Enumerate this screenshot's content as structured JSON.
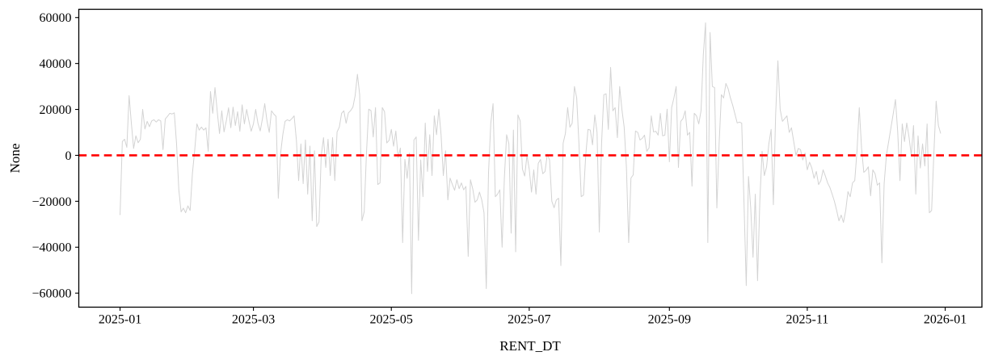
{
  "chart_data": {
    "type": "line",
    "title": "",
    "xlabel": "RENT_DT",
    "ylabel": "None",
    "grid": false,
    "legend": null,
    "frame": "full-box",
    "background_color": "#ffffff",
    "frame_color": "#000000",
    "x_axis": {
      "start_date": "2025-01-01",
      "unit": "days",
      "tick_labels": [
        "2025-01",
        "2025-03",
        "2025-05",
        "2025-07",
        "2025-09",
        "2025-11",
        "2026-01"
      ],
      "tick_offsets": [
        0,
        59,
        120,
        181,
        243,
        304,
        365
      ]
    },
    "y_axis": {
      "ticks": [
        -60000,
        -40000,
        -20000,
        0,
        20000,
        40000,
        60000
      ],
      "tick_labels": [
        "−60000",
        "−40000",
        "−20000",
        "0",
        "20000",
        "40000",
        "60000"
      ]
    },
    "xlim_days": [
      -18.25,
      381.25
    ],
    "ylim": [
      -66100,
      63600
    ],
    "baseline": {
      "y": 0,
      "color": "#ff0000",
      "style": "dashed",
      "width": 2.6
    },
    "series": [
      {
        "name": "None",
        "color": "#d3d3d3",
        "width": 1,
        "day_step": 1,
        "values": [
          -26000,
          6000,
          7000,
          3500,
          26000,
          14000,
          3000,
          8500,
          5500,
          7000,
          20000,
          11500,
          14800,
          12500,
          15000,
          15500,
          14500,
          15500,
          15000,
          2500,
          15800,
          17000,
          18300,
          18000,
          18500,
          5000,
          -15000,
          -24600,
          -23000,
          -25000,
          -22000,
          -24000,
          -8000,
          2000,
          13700,
          11000,
          12300,
          11000,
          12000,
          1800,
          27800,
          18300,
          29500,
          19000,
          9500,
          19400,
          10200,
          15000,
          20700,
          12000,
          21000,
          13000,
          19000,
          10500,
          22000,
          13700,
          20000,
          15000,
          10500,
          13700,
          20000,
          14000,
          10600,
          16000,
          22500,
          15000,
          10000,
          19400,
          18000,
          17000,
          -18700,
          700,
          9000,
          14800,
          15500,
          15000,
          16000,
          17200,
          6700,
          -11000,
          5000,
          -12300,
          6700,
          -16900,
          4000,
          -28500,
          2000,
          -31000,
          -29000,
          0,
          7700,
          -5300,
          7000,
          -8800,
          7700,
          -11000,
          10200,
          12300,
          18300,
          19400,
          14000,
          18500,
          19500,
          21000,
          26000,
          35300,
          26400,
          -28500,
          -24600,
          1000,
          20100,
          19500,
          8000,
          20800,
          -12700,
          -12000,
          20800,
          19000,
          5400,
          6500,
          11300,
          4000,
          10600,
          -1000,
          3200,
          -38000,
          -1800,
          -10000,
          1000,
          -60200,
          6700,
          8000,
          -37000,
          -2000,
          -18000,
          14100,
          -7000,
          9000,
          -8800,
          17200,
          9000,
          20100,
          9000,
          -8800,
          2000,
          -19400,
          -9900,
          -12700,
          -15200,
          -10600,
          -14500,
          -12000,
          -15000,
          -13500,
          -44000,
          -10600,
          -14500,
          -20400,
          -19400,
          -16000,
          -19400,
          -25000,
          -58000,
          -7500,
          14000,
          22500,
          -18000,
          -16900,
          -15000,
          -40000,
          -10000,
          9000,
          5000,
          -33900,
          11000,
          -42000,
          17600,
          15000,
          -6000,
          -9000,
          0,
          -6000,
          -16000,
          -6300,
          -16900,
          -3500,
          -1800,
          -8000,
          -7000,
          500,
          -2000,
          -20000,
          -22800,
          -19400,
          -18700,
          -48000,
          5300,
          9500,
          20800,
          12300,
          14000,
          30000,
          25000,
          5000,
          -18000,
          -17300,
          0,
          11300,
          11000,
          4600,
          17600,
          10000,
          -33400,
          5000,
          26400,
          26800,
          11300,
          38300,
          19400,
          20800,
          7700,
          30000,
          20000,
          12300,
          -5300,
          -38000,
          -9900,
          -8500,
          10600,
          10000,
          6700,
          7400,
          8800,
          1800,
          3200,
          17200,
          10200,
          10500,
          8800,
          18300,
          8500,
          8800,
          20100,
          -2800,
          20800,
          25000,
          30000,
          -5300,
          14800,
          16000,
          19400,
          8800,
          10000,
          -13400,
          18300,
          17200,
          13700,
          19400,
          43600,
          57700,
          -38000,
          53500,
          30000,
          29500,
          -22900,
          5000,
          26400,
          25000,
          31300,
          29000,
          25000,
          21800,
          18000,
          14100,
          14500,
          14000,
          -20400,
          -56700,
          -9200,
          -23200,
          -44400,
          -16900,
          -54600,
          -20000,
          1800,
          -8800,
          -5000,
          5000,
          11300,
          -21500,
          17600,
          41200,
          20000,
          14800,
          16000,
          17200,
          10000,
          12000,
          6000,
          0,
          3000,
          2500,
          -2000,
          1000,
          -6300,
          -3000,
          -5500,
          -10000,
          -7000,
          -12700,
          -11000,
          -6300,
          -9000,
          -12000,
          -14000,
          -16900,
          -20000,
          -24000,
          -28500,
          -26000,
          -29200,
          -24000,
          -15800,
          -18000,
          -12000,
          -11000,
          2000,
          20800,
          3200,
          -7400,
          -6500,
          -5000,
          -17600,
          -6300,
          -8000,
          -13000,
          -12000,
          -46800,
          -12300,
          0,
          6000,
          12000,
          18000,
          24300,
          10200,
          -11000,
          13700,
          6000,
          14100,
          8000,
          0,
          13000,
          -16900,
          8500,
          -5500,
          5000,
          -4600,
          13700,
          -25000,
          -24000,
          1000,
          23600,
          13000,
          9500
        ]
      }
    ]
  }
}
